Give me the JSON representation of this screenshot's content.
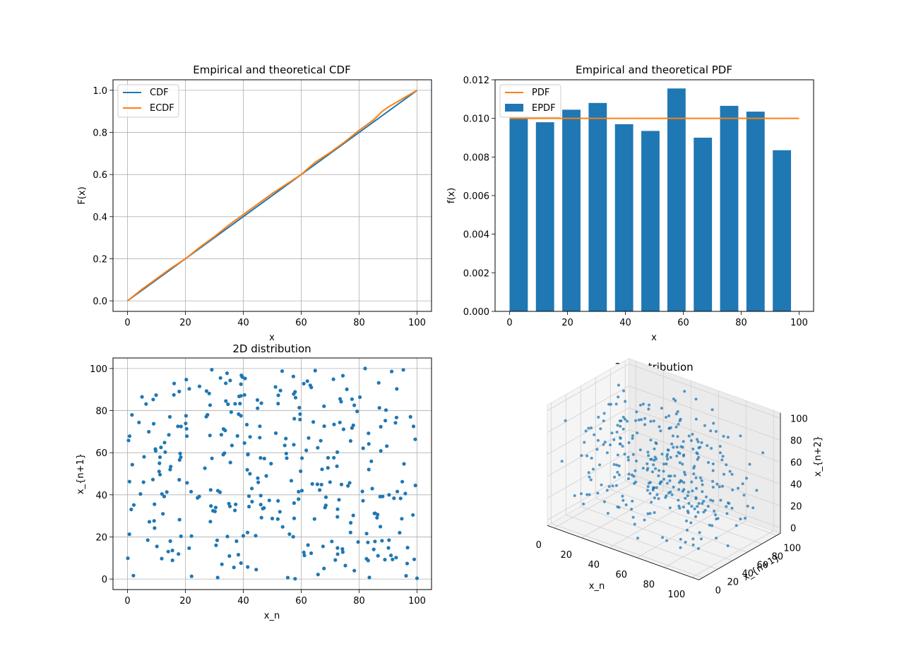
{
  "chart_data": [
    {
      "type": "line",
      "title": "Empirical and theoretical CDF",
      "xlabel": "x",
      "ylabel": "F(x)",
      "xlim": [
        -5,
        105
      ],
      "ylim": [
        -0.05,
        1.05
      ],
      "xticks": [
        0,
        20,
        40,
        60,
        80,
        100
      ],
      "xtick_labels": [
        "0",
        "20",
        "40",
        "60",
        "80",
        "100"
      ],
      "yticks": [
        0.0,
        0.2,
        0.4,
        0.6,
        0.8,
        1.0
      ],
      "ytick_labels": [
        "0.0",
        "0.2",
        "0.4",
        "0.6",
        "0.8",
        "1.0"
      ],
      "grid": true,
      "legend": "upper-left",
      "series": [
        {
          "name": "CDF",
          "color": "#1f77b4",
          "x": [
            0,
            100
          ],
          "y": [
            0.0,
            1.0
          ]
        },
        {
          "name": "ECDF",
          "color": "#ff7f0e",
          "x": [
            0,
            5,
            10,
            15,
            20,
            25,
            30,
            35,
            40,
            45,
            50,
            55,
            60,
            62,
            65,
            70,
            75,
            80,
            85,
            88,
            90,
            95,
            100
          ],
          "y": [
            0.0,
            0.055,
            0.105,
            0.155,
            0.2,
            0.255,
            0.305,
            0.36,
            0.41,
            0.46,
            0.51,
            0.555,
            0.6,
            0.625,
            0.66,
            0.705,
            0.755,
            0.81,
            0.86,
            0.9,
            0.92,
            0.96,
            1.0
          ]
        }
      ]
    },
    {
      "type": "bar",
      "title": "Empirical and theoretical PDF",
      "xlabel": "x",
      "ylabel": "f(x)",
      "xlim": [
        -5,
        105
      ],
      "ylim": [
        0,
        0.012
      ],
      "xticks": [
        0,
        20,
        40,
        60,
        80,
        100
      ],
      "xtick_labels": [
        "0",
        "20",
        "40",
        "60",
        "80",
        "100"
      ],
      "yticks": [
        0.0,
        0.002,
        0.004,
        0.006,
        0.008,
        0.01,
        0.012
      ],
      "ytick_labels": [
        "0.000",
        "0.002",
        "0.004",
        "0.006",
        "0.008",
        "0.010",
        "0.012"
      ],
      "legend": "upper-left",
      "bar_width": 6.3,
      "bars": {
        "name": "EPDF",
        "color": "#1f77b4",
        "x": [
          0,
          9.1,
          18.2,
          27.3,
          36.4,
          45.5,
          54.5,
          63.6,
          72.7,
          81.8,
          90.9
        ],
        "values": [
          0.01,
          0.0098,
          0.01045,
          0.0108,
          0.0097,
          0.00935,
          0.01155,
          0.009,
          0.01065,
          0.01035,
          0.00835
        ]
      },
      "line": {
        "name": "PDF",
        "color": "#ff7f0e",
        "x": [
          0,
          100
        ],
        "y": [
          0.01,
          0.01
        ]
      }
    },
    {
      "type": "scatter",
      "title": "2D distribution",
      "xlabel": "x_n",
      "ylabel": "x_{n+1}",
      "xlim": [
        -5,
        105
      ],
      "ylim": [
        -5,
        105
      ],
      "xticks": [
        0,
        20,
        40,
        60,
        80,
        100
      ],
      "xtick_labels": [
        "0",
        "20",
        "40",
        "60",
        "80",
        "100"
      ],
      "yticks": [
        0,
        20,
        40,
        60,
        80,
        100
      ],
      "ytick_labels": [
        "0",
        "20",
        "40",
        "60",
        "80",
        "100"
      ],
      "grid": true,
      "color": "#1f77b4",
      "point_count": 330,
      "seed": 12345
    },
    {
      "type": "scatter3d",
      "title": "3D distribution",
      "xlabel": "x_n",
      "ylabel": "x_{n+1}",
      "zlabel": "x_{n+2}",
      "xtick_labels": [
        "0",
        "20",
        "40",
        "60",
        "80",
        "100"
      ],
      "ytick_labels": [
        "0",
        "20",
        "40",
        "60",
        "80",
        "100"
      ],
      "ztick_labels": [
        "0",
        "20",
        "40",
        "60",
        "80",
        "100"
      ],
      "color": "#1f77b4",
      "point_count": 330,
      "seed": 12345
    }
  ]
}
